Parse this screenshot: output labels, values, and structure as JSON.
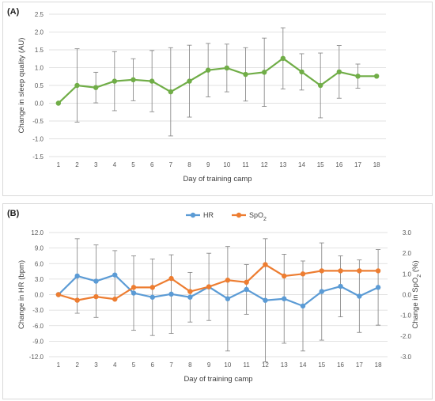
{
  "chart_data": [
    {
      "panel_label": "(A)",
      "type": "line",
      "xlabel": "Day of training camp",
      "ylabel": "Change in sleep quality (AU)",
      "categories": [
        "1",
        "2",
        "3",
        "4",
        "5",
        "6",
        "7",
        "8",
        "9",
        "10",
        "11",
        "12",
        "13",
        "14",
        "15",
        "16",
        "17",
        "18"
      ],
      "ylim": [
        -1.5,
        2.5
      ],
      "yticks": [
        "-1.5",
        "-1.0",
        "-0.5",
        "0.0",
        "0.5",
        "1.0",
        "1.5",
        "2.0",
        "2.5"
      ],
      "ytick_values": [
        -1.5,
        -1.0,
        -0.5,
        0.0,
        0.5,
        1.0,
        1.5,
        2.0,
        2.5
      ],
      "grid": true,
      "series": [
        {
          "color": "#70ad47",
          "values": [
            0.0,
            0.5,
            0.44,
            0.62,
            0.66,
            0.62,
            0.32,
            0.62,
            0.93,
            0.99,
            0.81,
            0.87,
            1.26,
            0.88,
            0.5,
            0.88,
            0.76,
            0.76
          ],
          "error": [
            0,
            1.03,
            0.43,
            0.83,
            0.59,
            0.86,
            1.24,
            1.01,
            0.75,
            0.67,
            0.75,
            0.96,
            0.86,
            0.51,
            0.91,
            0.74,
            0.34,
            0
          ]
        }
      ]
    },
    {
      "panel_label": "(B)",
      "type": "line",
      "xlabel": "Day of training camp",
      "ylabel": "Change in HR (bpm)",
      "y2label_prefix": "Change in SpO",
      "y2label_sub": "2",
      "y2label_suffix": " (%)",
      "categories": [
        "1",
        "2",
        "3",
        "4",
        "5",
        "6",
        "7",
        "8",
        "9",
        "10",
        "11",
        "12",
        "13",
        "14",
        "15",
        "16",
        "17",
        "18"
      ],
      "ylim": [
        -12,
        12
      ],
      "yticks": [
        "-12.0",
        "-9.0",
        "-6.0",
        "-3.0",
        "0.0",
        "3.0",
        "6.0",
        "9.0",
        "12.0"
      ],
      "ytick_values": [
        -12,
        -9,
        -6,
        -3,
        0,
        3,
        6,
        9,
        12
      ],
      "y2lim": [
        -3,
        3
      ],
      "y2ticks": [
        "-3.0",
        "-2.0",
        "-1.0",
        "0.0",
        "1.0",
        "2.0",
        "3.0"
      ],
      "y2tick_values": [
        -3,
        -2,
        -1,
        0,
        1,
        2,
        3
      ],
      "legend_position": "top-center",
      "legend": [
        {
          "label": "HR",
          "sub": "",
          "color": "#5b9bd5"
        },
        {
          "label": "SpO",
          "sub": "2",
          "color": "#ed7d31"
        }
      ],
      "series": [
        {
          "name": "HR",
          "axis": "left",
          "color": "#5b9bd5",
          "values": [
            0.0,
            3.6,
            2.6,
            3.8,
            0.3,
            -0.5,
            0.1,
            -0.5,
            1.5,
            -0.8,
            1.0,
            -1.1,
            -0.8,
            -2.2,
            0.6,
            1.6,
            -0.3,
            1.4
          ],
          "error": [
            0,
            7.2,
            7.0,
            4.7,
            7.2,
            7.4,
            7.6,
            4.8,
            6.5,
            10.1,
            4.8,
            11.9,
            8.6,
            8.7,
            9.4,
            5.9,
            7.0,
            7.3
          ]
        },
        {
          "name": "SpO2",
          "axis": "right",
          "color": "#ed7d31",
          "values": [
            0.0,
            -0.27,
            -0.1,
            -0.22,
            0.35,
            0.35,
            0.78,
            0.15,
            0.38,
            0.7,
            0.6,
            1.45,
            0.9,
            1.0,
            1.15,
            1.15,
            1.15,
            1.15
          ],
          "error": [
            0,
            0,
            0,
            0,
            0,
            0,
            0,
            0,
            0,
            0,
            0,
            0,
            0,
            0,
            0,
            0,
            0,
            0
          ]
        }
      ]
    }
  ]
}
